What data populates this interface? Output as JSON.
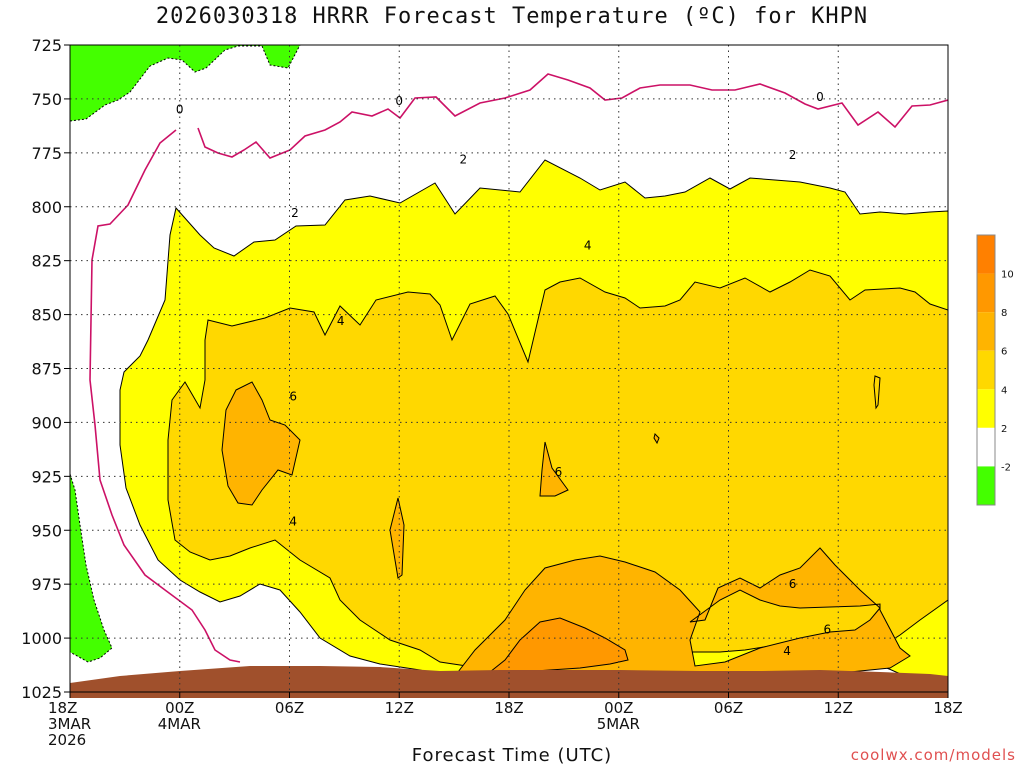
{
  "chart_data": {
    "type": "heatmap",
    "title": "2026030318 HRRR Forecast Temperature (ºC) for KHPN",
    "xlabel": "Forecast Time (UTC)",
    "ylabel": "",
    "x_ticks": [
      {
        "h": 0,
        "lines": [
          "18Z",
          "3MAR",
          "2026"
        ]
      },
      {
        "h": 6,
        "lines": [
          "00Z",
          "4MAR"
        ]
      },
      {
        "h": 12,
        "lines": [
          "06Z"
        ]
      },
      {
        "h": 18,
        "lines": [
          "12Z"
        ]
      },
      {
        "h": 24,
        "lines": [
          "18Z"
        ]
      },
      {
        "h": 30,
        "lines": [
          "00Z",
          "5MAR"
        ]
      },
      {
        "h": 36,
        "lines": [
          "06Z"
        ]
      },
      {
        "h": 42,
        "lines": [
          "12Z"
        ]
      },
      {
        "h": 48,
        "lines": [
          "18Z"
        ]
      }
    ],
    "xlim": [
      0,
      48
    ],
    "y_ticks": [
      725,
      750,
      775,
      800,
      825,
      850,
      875,
      900,
      925,
      950,
      975,
      1000,
      1025
    ],
    "ylim": [
      725,
      1025
    ],
    "grid": true,
    "colorbar": {
      "labels": [
        "-2",
        "2",
        "4",
        "6",
        "8",
        "10"
      ],
      "colors": [
        "#44ff00",
        "#ffffff",
        "#ffff00",
        "#ffd800",
        "#ffb400",
        "#ff9800",
        "#ff8000"
      ]
    },
    "contour_labels": [
      {
        "text": "0",
        "h": 6.0,
        "p": 755
      },
      {
        "text": "0",
        "h": 18.0,
        "p": 751
      },
      {
        "text": "0",
        "h": 41.0,
        "p": 749
      },
      {
        "text": "2",
        "h": 12.3,
        "p": 803
      },
      {
        "text": "2",
        "h": 21.5,
        "p": 778
      },
      {
        "text": "2",
        "h": 39.5,
        "p": 776
      },
      {
        "text": "4",
        "h": 28.3,
        "p": 818
      },
      {
        "text": "4",
        "h": 14.8,
        "p": 853
      },
      {
        "text": "4",
        "h": 12.2,
        "p": 946
      },
      {
        "text": "4",
        "h": 39.2,
        "p": 1006
      },
      {
        "text": "6",
        "h": 12.2,
        "p": 888
      },
      {
        "text": "6",
        "h": 26.7,
        "p": 923
      },
      {
        "text": "6",
        "h": 39.5,
        "p": 975
      },
      {
        "text": "6",
        "h": 41.4,
        "p": 996
      }
    ],
    "credit": "coolwx.com/models"
  }
}
